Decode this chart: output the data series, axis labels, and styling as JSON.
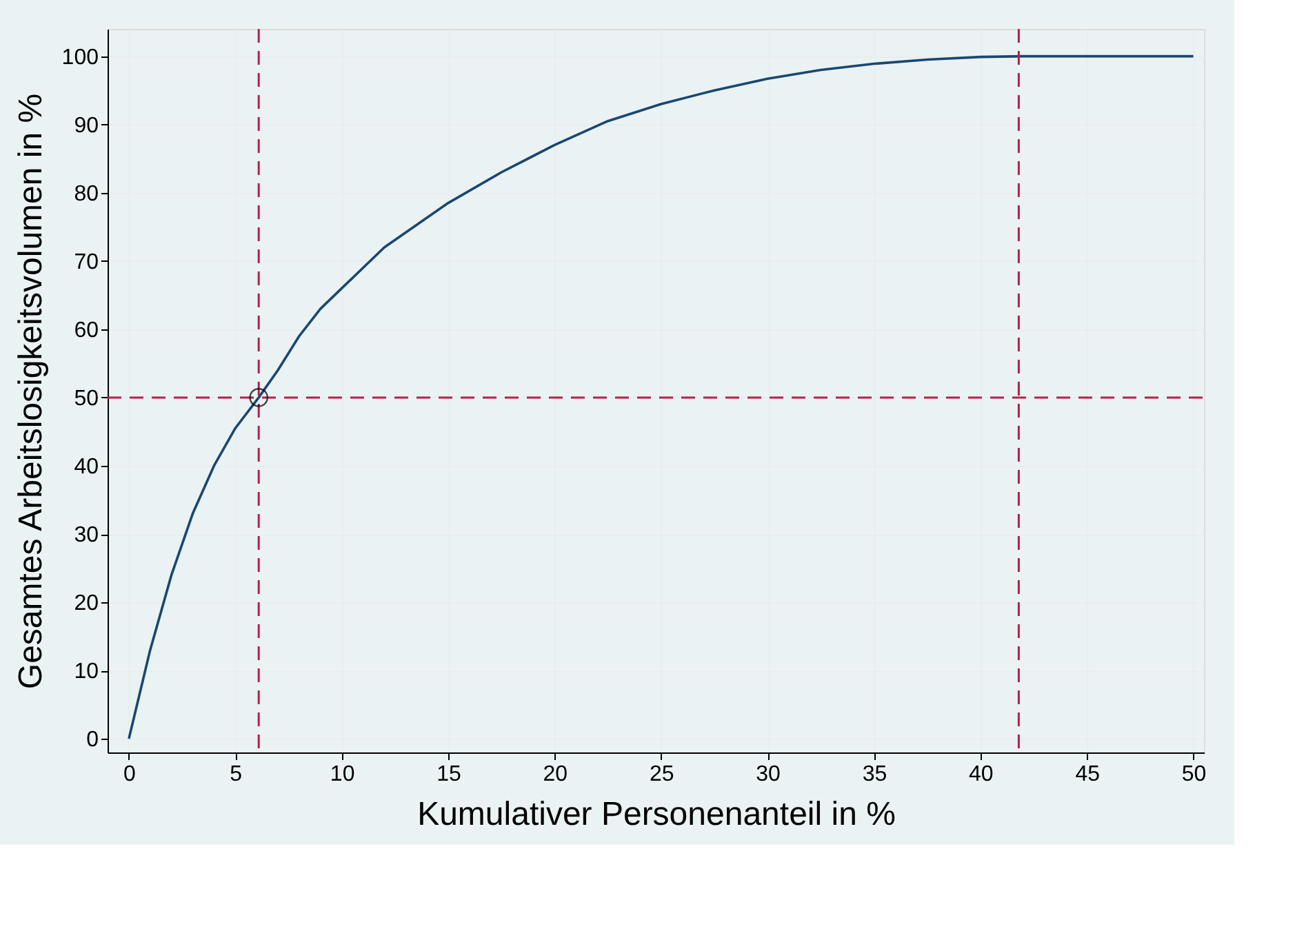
{
  "chart_data": {
    "type": "line",
    "xlabel": "Kumulativer Personenanteil in %",
    "ylabel": "Gesamtes Arbeitslosigkeitsvolumen in %",
    "series": [
      {
        "color": "#1a476f",
        "x": [
          0,
          1,
          2,
          3,
          4,
          5,
          6.1,
          7,
          8,
          9,
          10,
          12,
          15,
          17.5,
          20,
          22.5,
          25,
          27.5,
          30,
          32.5,
          35,
          37.5,
          40,
          42,
          45,
          50
        ],
        "values": [
          0,
          13,
          24,
          33,
          40,
          45.5,
          50,
          54,
          59,
          63,
          66,
          72,
          78.5,
          83,
          87,
          90.5,
          93,
          95,
          96.7,
          98,
          98.9,
          99.5,
          99.9,
          100,
          100,
          100
        ]
      },
      {
        "type": "scatter",
        "color": "#000000",
        "marker": "circle",
        "x": [
          6.1
        ],
        "values": [
          50
        ]
      }
    ],
    "ref_lines": [
      {
        "axis": "x",
        "value": 6.1,
        "color": "#b5204a",
        "line_style": "dashed"
      },
      {
        "axis": "x",
        "value": 41.8,
        "color": "#b5204a",
        "line_style": "dashed"
      },
      {
        "axis": "y",
        "value": 50,
        "color": "#b5204a",
        "line_style": "dashed"
      }
    ],
    "xlim": [
      -1,
      50.5
    ],
    "xticks": [
      0,
      5,
      10,
      15,
      20,
      25,
      30,
      35,
      40,
      45,
      50
    ],
    "ylim": [
      -2,
      104
    ],
    "yticks": [
      0,
      10,
      20,
      30,
      40,
      50,
      60,
      70,
      80,
      90,
      100
    ],
    "grid": true
  }
}
